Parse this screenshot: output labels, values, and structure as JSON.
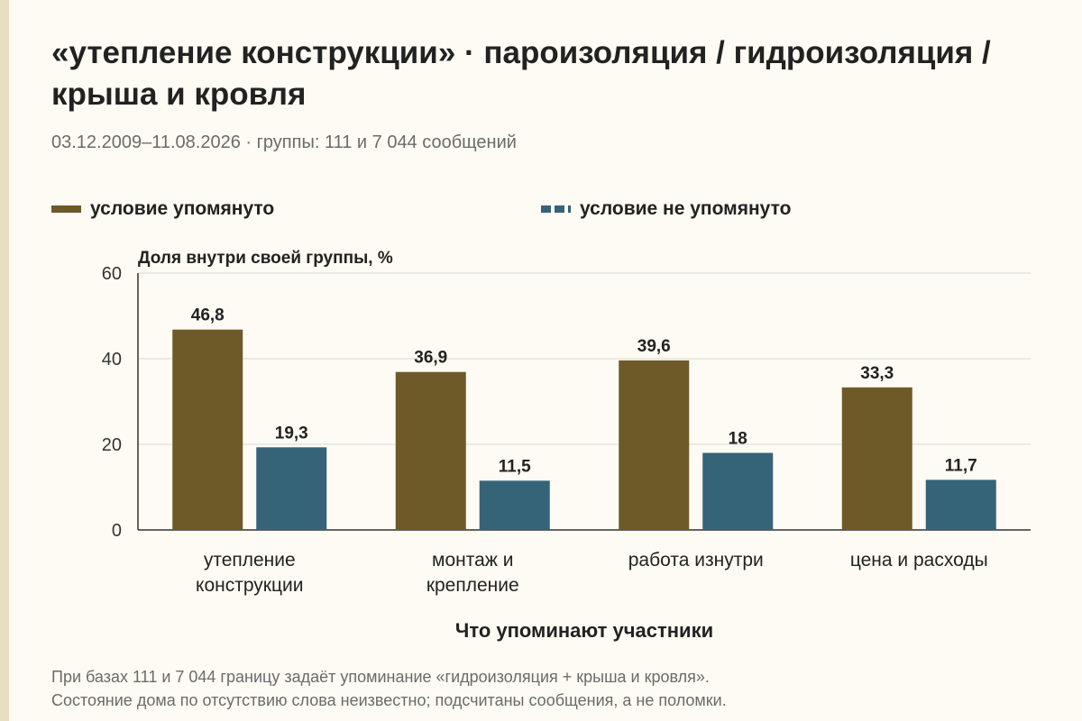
{
  "title": "«утепление конструкции» · пароизоляция / гидроизоляция / крыша и кровля",
  "subtitle": "03.12.2009–11.08.2026 · группы: 111 и 7 044 сообщений",
  "footnote_line1": "При базах 111 и 7 044 границу задаёт упоминание «гидроизоляция + крыша и кровля».",
  "footnote_line2": "Состояние дома по отсутствию слова неизвестно; подсчитаны сообщения, а не поломки.",
  "colors": {
    "mentioned": "#6e5a28",
    "not_mentioned": "#356378"
  },
  "chart_data": {
    "type": "bar",
    "categories": [
      [
        "утепление",
        "конструкции"
      ],
      [
        "монтаж и",
        "крепление"
      ],
      [
        "работа изнутри"
      ],
      [
        "цена и расходы"
      ]
    ],
    "series": [
      {
        "name": "условие упомянуто",
        "values": [
          46.8,
          36.9,
          39.6,
          33.3
        ],
        "labels": [
          "46,8",
          "36,9",
          "39,6",
          "33,3"
        ]
      },
      {
        "name": "условие не упомянуто",
        "values": [
          19.3,
          11.5,
          18,
          11.7
        ],
        "labels": [
          "19,3",
          "11,5",
          "18",
          "11,7"
        ]
      }
    ],
    "ylabel": "Доля внутри своей группы, %",
    "xlabel": "Что упоминают участники",
    "ylim": [
      0,
      60
    ],
    "yticks": [
      0,
      20,
      40,
      60
    ],
    "grid": true,
    "legend_position": "top"
  }
}
